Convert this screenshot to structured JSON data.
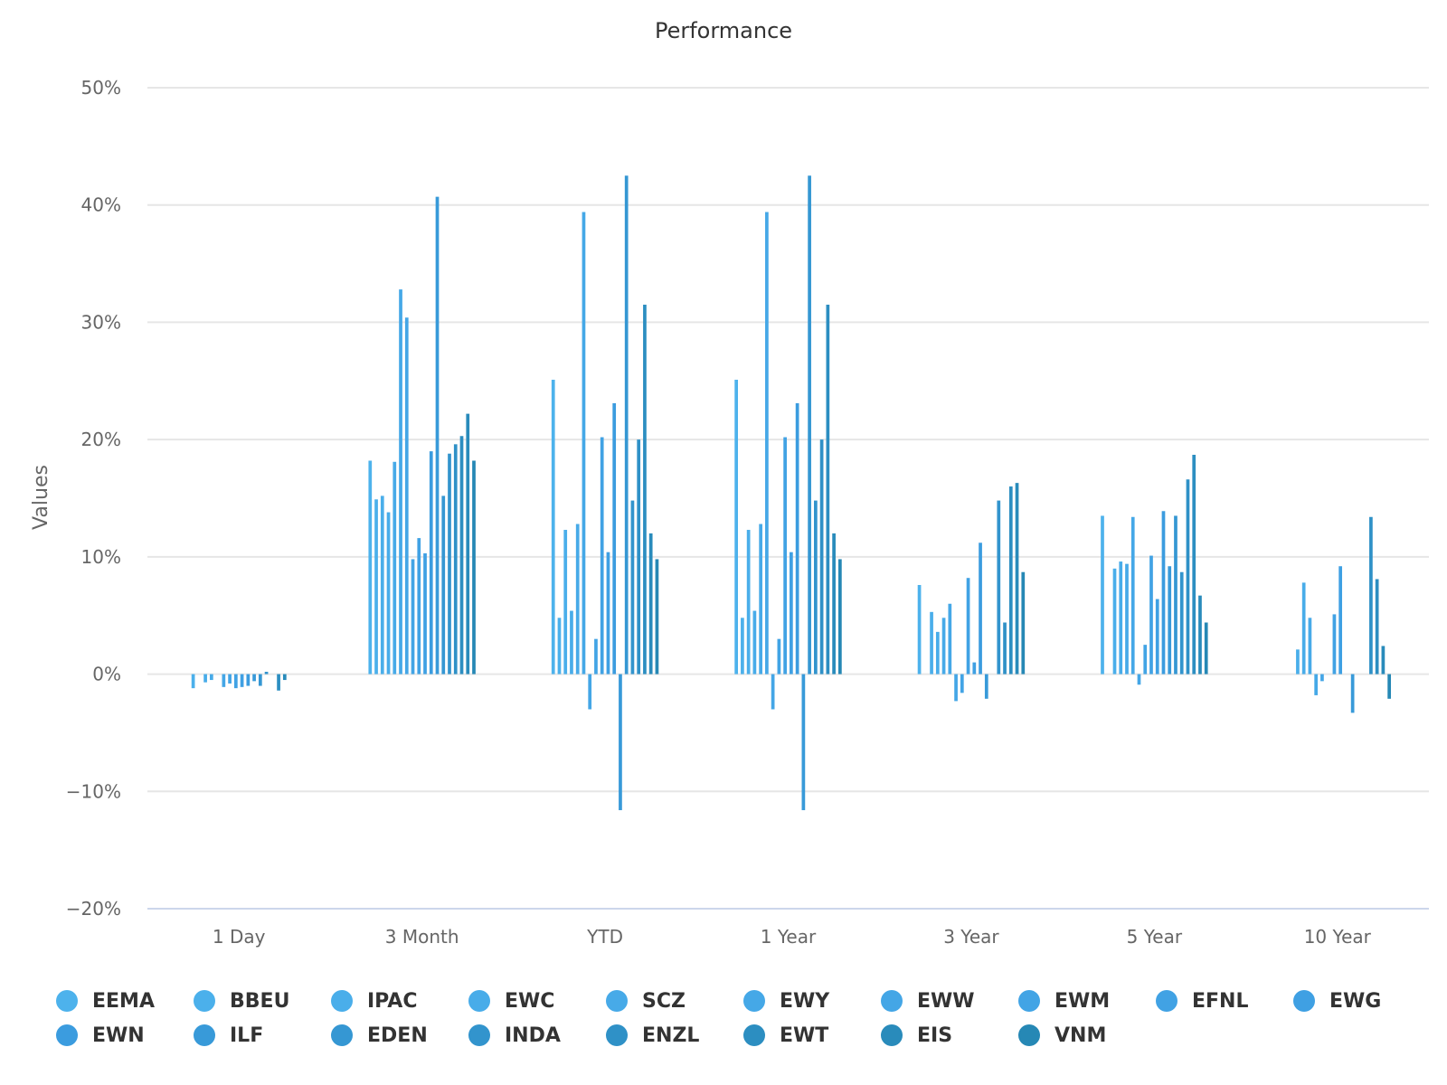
{
  "chart_data": {
    "type": "bar",
    "title": "Performance",
    "ylabel": "Values",
    "xlabel": "",
    "ylim": [
      -20,
      50
    ],
    "yticks": [
      50,
      40,
      30,
      20,
      10,
      0,
      -10,
      -20
    ],
    "ytick_labels": [
      "50%",
      "40%",
      "30%",
      "20%",
      "10%",
      "0%",
      "−10%",
      "−20%"
    ],
    "grid": true,
    "legend_position": "bottom",
    "categories": [
      "1 Day",
      "3 Month",
      "YTD",
      "1 Year",
      "3 Year",
      "5 Year",
      "10 Year"
    ],
    "series": [
      {
        "name": "EEMA",
        "color": "#4db2ec",
        "values": [
          0,
          18.2,
          25.1,
          25.1,
          7.6,
          13.5,
          0
        ]
      },
      {
        "name": "BBEU",
        "color": "#4bb0eb",
        "values": [
          -1.2,
          14.9,
          4.8,
          4.8,
          0,
          0,
          0
        ]
      },
      {
        "name": "IPAC",
        "color": "#4aaeea",
        "values": [
          0,
          15.2,
          12.3,
          12.3,
          5.3,
          9,
          2.1
        ]
      },
      {
        "name": "EWC",
        "color": "#48ace9",
        "values": [
          -0.7,
          13.8,
          5.4,
          5.4,
          3.6,
          9.6,
          7.8
        ]
      },
      {
        "name": "SCZ",
        "color": "#47aae8",
        "values": [
          -0.5,
          18.1,
          12.8,
          12.8,
          4.8,
          9.4,
          4.8
        ]
      },
      {
        "name": "EWY",
        "color": "#45a8e7",
        "values": [
          0,
          32.8,
          39.4,
          39.4,
          6,
          13.4,
          -1.8
        ]
      },
      {
        "name": "EWW",
        "color": "#44a6e6",
        "values": [
          -1.1,
          30.4,
          -3,
          -3,
          -2.3,
          -0.9,
          -0.6
        ]
      },
      {
        "name": "EWM",
        "color": "#42a4e5",
        "values": [
          -0.8,
          9.8,
          3,
          3,
          -1.6,
          2.5,
          0
        ]
      },
      {
        "name": "EFNL",
        "color": "#41a2e4",
        "values": [
          -1.2,
          11.6,
          20.2,
          20.2,
          8.2,
          10.1,
          5.1
        ]
      },
      {
        "name": "EWG",
        "color": "#3fa0e3",
        "values": [
          -1.1,
          10.3,
          10.4,
          10.4,
          1,
          6.4,
          9.2
        ]
      },
      {
        "name": "EWN",
        "color": "#3b9cdf",
        "values": [
          -1,
          19,
          23.1,
          23.1,
          11.2,
          13.9,
          0
        ]
      },
      {
        "name": "ILF",
        "color": "#389ad9",
        "values": [
          -0.6,
          40.7,
          -11.6,
          -11.6,
          -2.1,
          9.2,
          -3.3
        ]
      },
      {
        "name": "EDEN",
        "color": "#3597d3",
        "values": [
          -1,
          15.2,
          42.5,
          42.5,
          0,
          13.5,
          0
        ]
      },
      {
        "name": "INDA",
        "color": "#3294cd",
        "values": [
          0.2,
          18.8,
          14.8,
          14.8,
          14.8,
          8.7,
          0
        ]
      },
      {
        "name": "ENZL",
        "color": "#2f91c7",
        "values": [
          0,
          19.6,
          20,
          20,
          4.4,
          16.6,
          13.4
        ]
      },
      {
        "name": "EWT",
        "color": "#2c8ec1",
        "values": [
          -1.4,
          20.3,
          31.5,
          31.5,
          16,
          18.7,
          8.1
        ]
      },
      {
        "name": "EIS",
        "color": "#298bbb",
        "values": [
          -0.5,
          22.2,
          12,
          12,
          16.3,
          6.7,
          2.4
        ]
      },
      {
        "name": "VNM",
        "color": "#2688b5",
        "values": [
          0,
          18.2,
          9.8,
          9.8,
          8.7,
          4.4,
          -2.1
        ]
      }
    ]
  }
}
